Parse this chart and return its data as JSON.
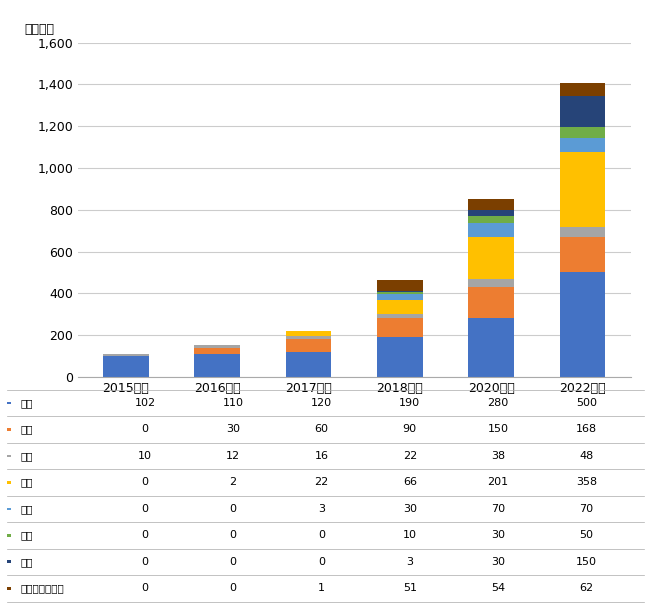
{
  "categories": [
    "2015年度",
    "2016年度",
    "2017年度",
    "2018年度",
    "2020年度",
    "2022年度"
  ],
  "series": [
    {
      "label": "農業",
      "color": "#4472C4",
      "values": [
        102,
        110,
        120,
        190,
        280,
        500
      ]
    },
    {
      "label": "測量",
      "color": "#ED7D31",
      "values": [
        0,
        30,
        60,
        90,
        150,
        168
      ]
    },
    {
      "label": "空撮",
      "color": "#A5A5A5",
      "values": [
        10,
        12,
        16,
        22,
        38,
        48
      ]
    },
    {
      "label": "検査",
      "color": "#FFC000",
      "values": [
        0,
        2,
        22,
        66,
        201,
        358
      ]
    },
    {
      "label": "防犯",
      "color": "#5B9BD5",
      "values": [
        0,
        0,
        3,
        30,
        70,
        70
      ]
    },
    {
      "label": "物流",
      "color": "#70AD47",
      "values": [
        0,
        0,
        0,
        10,
        30,
        50
      ]
    },
    {
      "label": "屋内",
      "color": "#264478",
      "values": [
        0,
        0,
        0,
        3,
        30,
        150
      ]
    },
    {
      "label": "その他サービス",
      "color": "#7B3F00",
      "values": [
        0,
        0,
        1,
        51,
        54,
        62
      ]
    }
  ],
  "ylabel": "（億円）",
  "ylim": [
    0,
    1600
  ],
  "yticks": [
    0,
    200,
    400,
    600,
    800,
    1000,
    1200,
    1400,
    1600
  ],
  "background_color": "#ffffff",
  "grid_color": "#cccccc"
}
